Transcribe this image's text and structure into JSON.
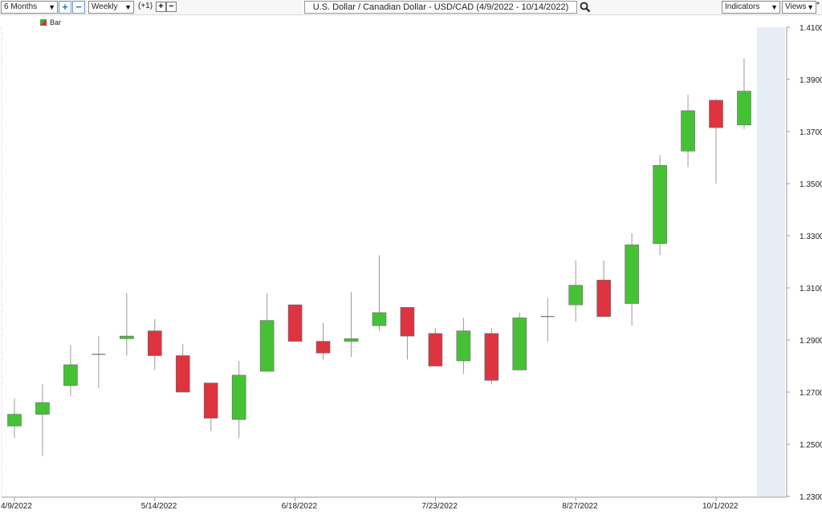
{
  "toolbar": {
    "period": "6 Months",
    "interval": "Weekly",
    "offset": "(+1)",
    "title": "U.S. Dollar / Canadian Dollar - USD/CAD (4/9/2022 - 10/14/2022)",
    "indicators": "Indicators",
    "views": "Views",
    "views_suffix": "*"
  },
  "legend": {
    "label": "Bar"
  },
  "colors": {
    "up": "#46c136",
    "down": "#de3440",
    "wick": "#9a9a9a",
    "grid": "#e3e3e3",
    "future": "#e7edf5"
  },
  "icons": [
    "plus-icon",
    "minus-icon",
    "search-icon",
    "chevron-down-icon"
  ],
  "chart_data": {
    "type": "candlestick",
    "ylim": [
      1.23,
      1.41
    ],
    "y_ticks": [
      "1.4100",
      "1.3900",
      "1.3700",
      "1.3500",
      "1.3300",
      "1.3100",
      "1.2900",
      "1.2700",
      "1.2500",
      "1.2300"
    ],
    "x_ticks": [
      {
        "label": "4/9/2022",
        "index": 0
      },
      {
        "label": "5/14/2022",
        "index": 5
      },
      {
        "label": "6/18/2022",
        "index": 10
      },
      {
        "label": "7/23/2022",
        "index": 15
      },
      {
        "label": "8/27/2022",
        "index": 20
      },
      {
        "label": "10/1/2022",
        "index": 25
      }
    ],
    "dates": [
      "4/9/2022",
      "4/16/2022",
      "4/23/2022",
      "4/30/2022",
      "5/7/2022",
      "5/14/2022",
      "5/21/2022",
      "5/28/2022",
      "6/4/2022",
      "6/11/2022",
      "6/18/2022",
      "6/25/2022",
      "7/2/2022",
      "7/9/2022",
      "7/16/2022",
      "7/23/2022",
      "7/30/2022",
      "8/6/2022",
      "8/13/2022",
      "8/20/2022",
      "8/27/2022",
      "9/3/2022",
      "9/10/2022",
      "9/17/2022",
      "9/24/2022",
      "10/1/2022",
      "10/8/2022"
    ],
    "ohlc": [
      [
        1.257,
        1.2675,
        1.2525,
        1.2615
      ],
      [
        1.2615,
        1.273,
        1.2455,
        1.266
      ],
      [
        1.2725,
        1.288,
        1.2685,
        1.2805
      ],
      [
        1.2845,
        1.2915,
        1.2715,
        1.2845
      ],
      [
        1.2905,
        1.308,
        1.284,
        1.2915
      ],
      [
        1.2935,
        1.298,
        1.2785,
        1.284
      ],
      [
        1.284,
        1.2885,
        1.27,
        1.27
      ],
      [
        1.2735,
        1.2735,
        1.255,
        1.26
      ],
      [
        1.2595,
        1.282,
        1.2525,
        1.2765
      ],
      [
        1.278,
        1.308,
        1.278,
        1.2975
      ],
      [
        1.3035,
        1.3035,
        1.2895,
        1.2895
      ],
      [
        1.2895,
        1.2965,
        1.2825,
        1.285
      ],
      [
        1.2895,
        1.3085,
        1.2835,
        1.2905
      ],
      [
        1.2955,
        1.3225,
        1.2935,
        1.3005
      ],
      [
        1.3025,
        1.3025,
        1.2825,
        1.2915
      ],
      [
        1.2925,
        1.2945,
        1.28,
        1.28
      ],
      [
        1.282,
        1.2985,
        1.277,
        1.2935
      ],
      [
        1.2925,
        1.2945,
        1.273,
        1.2745
      ],
      [
        1.2785,
        1.3005,
        1.2785,
        1.2985
      ],
      [
        1.299,
        1.306,
        1.2895,
        1.299
      ],
      [
        1.3035,
        1.3205,
        1.297,
        1.311
      ],
      [
        1.313,
        1.3205,
        1.299,
        1.299
      ],
      [
        1.304,
        1.331,
        1.2955,
        1.3265
      ],
      [
        1.327,
        1.361,
        1.3225,
        1.357
      ],
      [
        1.3625,
        1.384,
        1.3565,
        1.378
      ],
      [
        1.382,
        1.3825,
        1.35,
        1.3715
      ],
      [
        1.3725,
        1.398,
        1.371,
        1.3855
      ]
    ]
  }
}
